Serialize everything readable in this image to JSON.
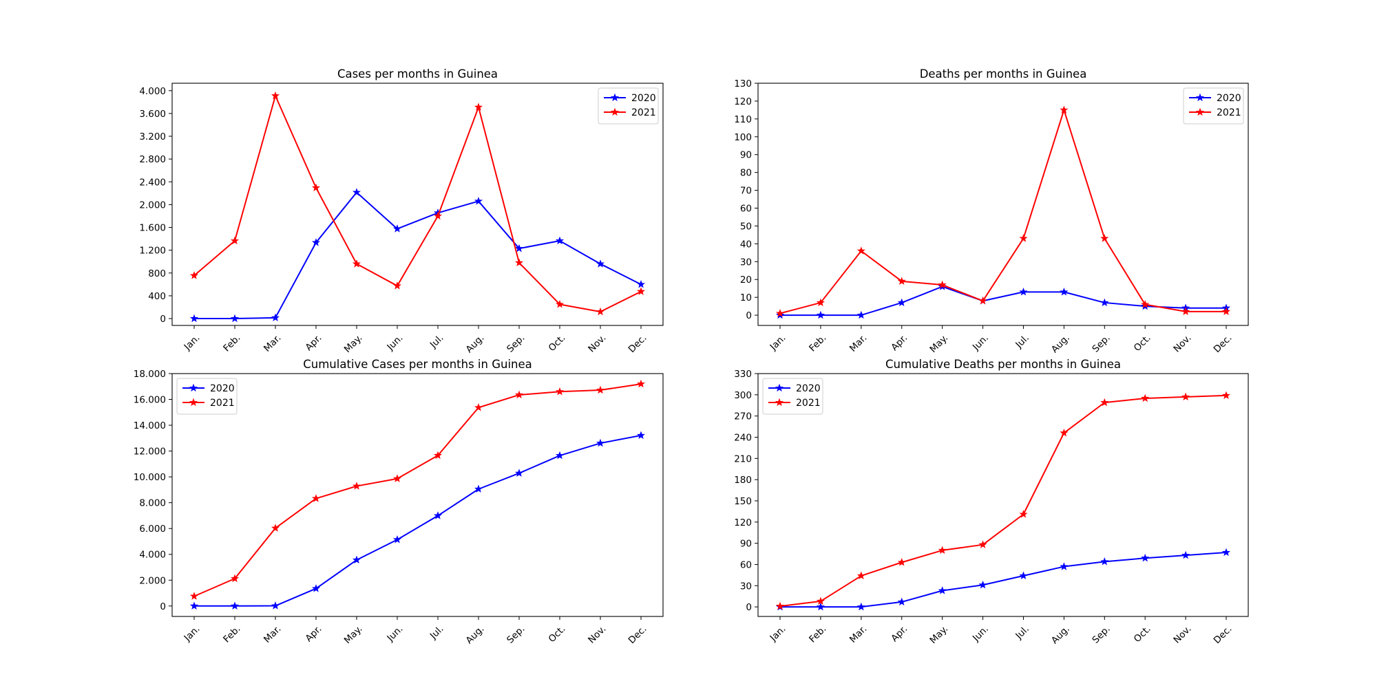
{
  "figure": {
    "months": [
      "Jan.",
      "Feb.",
      "Mar.",
      "Apr.",
      "May.",
      "Jun.",
      "Jul.",
      "Aug.",
      "Sep.",
      "Oct.",
      "Nov.",
      "Dec."
    ]
  },
  "colors": {
    "2020": "#0000ff",
    "2021": "#ff0000"
  },
  "chart_data": [
    {
      "type": "line",
      "title": "Cases per months in Guinea",
      "categories": [
        "Jan.",
        "Feb.",
        "Mar.",
        "Apr.",
        "May.",
        "Jun.",
        "Jul.",
        "Aug.",
        "Sep.",
        "Oct.",
        "Nov.",
        "Dec."
      ],
      "ylim": [
        -120,
        4130
      ],
      "yticks": [
        0,
        400,
        800,
        1200,
        1600,
        2000,
        2400,
        2800,
        3200,
        3600,
        4000
      ],
      "ytick_labels": [
        "0",
        "400",
        "800",
        "1.200",
        "1.600",
        "2.000",
        "2.400",
        "2.800",
        "3.200",
        "3.600",
        "4.000"
      ],
      "legend": "top-right",
      "grid": false,
      "series": [
        {
          "name": "2020",
          "color": "#0000ff",
          "values": [
            0,
            0,
            15,
            1335,
            2215,
            1575,
            1855,
            2060,
            1230,
            1365,
            960,
            600
          ]
        },
        {
          "name": "2021",
          "color": "#ff0000",
          "values": [
            755,
            1365,
            3910,
            2295,
            960,
            575,
            1800,
            3710,
            980,
            250,
            120,
            475
          ]
        }
      ]
    },
    {
      "type": "line",
      "title": "Deaths per months in Guinea",
      "categories": [
        "Jan.",
        "Feb.",
        "Mar.",
        "Apr.",
        "May.",
        "Jun.",
        "Jul.",
        "Aug.",
        "Sep.",
        "Oct.",
        "Nov.",
        "Dec."
      ],
      "ylim": [
        -5.75,
        130
      ],
      "yticks": [
        0,
        10,
        20,
        30,
        40,
        50,
        60,
        70,
        80,
        90,
        100,
        110,
        120,
        130
      ],
      "ytick_labels": [
        "0",
        "10",
        "20",
        "30",
        "40",
        "50",
        "60",
        "70",
        "80",
        "90",
        "100",
        "110",
        "120",
        "130"
      ],
      "legend": "top-right",
      "grid": false,
      "series": [
        {
          "name": "2020",
          "color": "#0000ff",
          "values": [
            0,
            0,
            0,
            7,
            16,
            8,
            13,
            13,
            7,
            5,
            4,
            4
          ]
        },
        {
          "name": "2021",
          "color": "#ff0000",
          "values": [
            1,
            7,
            36,
            19,
            17,
            8,
            43,
            115,
            43,
            6,
            2,
            2
          ]
        }
      ]
    },
    {
      "type": "line",
      "title": "Cumulative Cases per months in Guinea",
      "categories": [
        "Jan.",
        "Feb.",
        "Mar.",
        "Apr.",
        "May.",
        "Jun.",
        "Jul.",
        "Aug.",
        "Sep.",
        "Oct.",
        "Nov.",
        "Dec."
      ],
      "ylim": [
        -810,
        18000
      ],
      "yticks": [
        0,
        2000,
        4000,
        6000,
        8000,
        10000,
        12000,
        14000,
        16000,
        18000
      ],
      "ytick_labels": [
        "0",
        "2.000",
        "4.000",
        "6.000",
        "8.000",
        "10.000",
        "12.000",
        "14.000",
        "16.000",
        "18.000"
      ],
      "legend": "top-left",
      "grid": false,
      "series": [
        {
          "name": "2020",
          "color": "#0000ff",
          "values": [
            0,
            0,
            15,
            1350,
            3565,
            5140,
            6995,
            9055,
            10285,
            11650,
            12610,
            13210
          ]
        },
        {
          "name": "2021",
          "color": "#ff0000",
          "values": [
            755,
            2120,
            6030,
            8325,
            9285,
            9860,
            11660,
            15370,
            16350,
            16600,
            16720,
            17195
          ]
        }
      ]
    },
    {
      "type": "line",
      "title": "Cumulative Deaths per months in Guinea",
      "categories": [
        "Jan.",
        "Feb.",
        "Mar.",
        "Apr.",
        "May.",
        "Jun.",
        "Jul.",
        "Aug.",
        "Sep.",
        "Oct.",
        "Nov.",
        "Dec."
      ],
      "ylim": [
        -13.5,
        330
      ],
      "yticks": [
        0,
        30,
        60,
        90,
        120,
        150,
        180,
        210,
        240,
        270,
        300,
        330
      ],
      "ytick_labels": [
        "0",
        "30",
        "60",
        "90",
        "120",
        "150",
        "180",
        "210",
        "240",
        "270",
        "300",
        "330"
      ],
      "legend": "top-left",
      "grid": false,
      "series": [
        {
          "name": "2020",
          "color": "#0000ff",
          "values": [
            0,
            0,
            0,
            7,
            23,
            31,
            44,
            57,
            64,
            69,
            73,
            77
          ]
        },
        {
          "name": "2021",
          "color": "#ff0000",
          "values": [
            1,
            8,
            44,
            63,
            80,
            88,
            131,
            246,
            289,
            295,
            297,
            299
          ]
        }
      ]
    }
  ]
}
